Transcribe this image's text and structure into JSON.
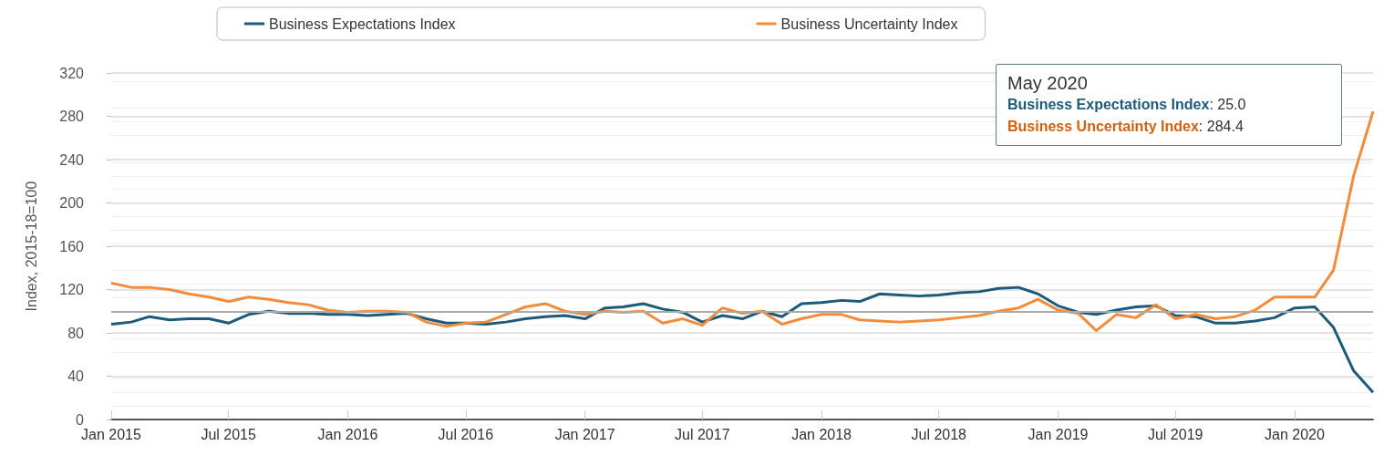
{
  "chart_data": {
    "type": "line",
    "ylabel": "Index, 2015-18=100",
    "x": [
      "2015-01",
      "2015-02",
      "2015-03",
      "2015-04",
      "2015-05",
      "2015-06",
      "2015-07",
      "2015-08",
      "2015-09",
      "2015-10",
      "2015-11",
      "2015-12",
      "2016-01",
      "2016-02",
      "2016-03",
      "2016-04",
      "2016-05",
      "2016-06",
      "2016-07",
      "2016-08",
      "2016-09",
      "2016-10",
      "2016-11",
      "2016-12",
      "2017-01",
      "2017-02",
      "2017-03",
      "2017-04",
      "2017-05",
      "2017-06",
      "2017-07",
      "2017-08",
      "2017-09",
      "2017-10",
      "2017-11",
      "2017-12",
      "2018-01",
      "2018-02",
      "2018-03",
      "2018-04",
      "2018-05",
      "2018-06",
      "2018-07",
      "2018-08",
      "2018-09",
      "2018-10",
      "2018-11",
      "2018-12",
      "2019-01",
      "2019-02",
      "2019-03",
      "2019-04",
      "2019-05",
      "2019-06",
      "2019-07",
      "2019-08",
      "2019-09",
      "2019-10",
      "2019-11",
      "2019-12",
      "2020-01",
      "2020-02",
      "2020-03",
      "2020-04",
      "2020-05"
    ],
    "series": [
      {
        "name": "Business Expectations Index",
        "color": "#1d5a7a",
        "values": [
          88,
          90,
          95,
          92,
          93,
          93,
          89,
          97,
          100,
          98,
          98,
          97,
          97,
          96,
          97,
          98,
          93,
          89,
          89,
          88,
          90,
          93,
          95,
          96,
          93,
          103,
          104,
          107,
          102,
          99,
          90,
          96,
          93,
          100,
          95,
          107,
          108,
          110,
          109,
          116,
          115,
          114,
          115,
          117,
          118,
          121,
          122,
          116,
          105,
          99,
          97,
          101,
          104,
          105,
          96,
          95,
          89,
          89,
          91,
          94,
          103,
          104,
          85,
          45,
          25.0
        ]
      },
      {
        "name": "Business Uncertainty Index",
        "color": "#f28c3c",
        "values": [
          126,
          122,
          122,
          120,
          116,
          113,
          109,
          113,
          111,
          108,
          106,
          101,
          99,
          100,
          100,
          99,
          90,
          86,
          89,
          90,
          97,
          104,
          107,
          100,
          97,
          100,
          99,
          100,
          89,
          93,
          87,
          103,
          98,
          100,
          88,
          93,
          97,
          97,
          92,
          91,
          90,
          91,
          92,
          94,
          96,
          100,
          103,
          111,
          101,
          98,
          82,
          97,
          94,
          106,
          93,
          97,
          93,
          95,
          101,
          113,
          113,
          113,
          138,
          225,
          284.4
        ]
      }
    ],
    "xlim": [
      "2015-01",
      "2020-05"
    ],
    "xticks": [
      {
        "value": "2015-01",
        "label": "Jan 2015"
      },
      {
        "value": "2015-07",
        "label": "Jul 2015"
      },
      {
        "value": "2016-01",
        "label": "Jan 2016"
      },
      {
        "value": "2016-07",
        "label": "Jul 2016"
      },
      {
        "value": "2017-01",
        "label": "Jan 2017"
      },
      {
        "value": "2017-07",
        "label": "Jul 2017"
      },
      {
        "value": "2018-01",
        "label": "Jan 2018"
      },
      {
        "value": "2018-07",
        "label": "Jul 2018"
      },
      {
        "value": "2019-01",
        "label": "Jan 2019"
      },
      {
        "value": "2019-07",
        "label": "Jul 2019"
      },
      {
        "value": "2020-01",
        "label": "Jan 2020"
      }
    ],
    "ylim": [
      0,
      320
    ],
    "yticks": [
      0,
      40,
      80,
      120,
      160,
      200,
      240,
      280,
      320
    ],
    "ref_lines": [
      {
        "axis": "y",
        "value": 100,
        "color": "#aaaaaa"
      }
    ],
    "annotations": [
      "May 2020",
      "Business Expectations Index: 25.0",
      "Business Uncertainty Index: 284.4"
    ],
    "grid": "y",
    "legend": "top",
    "line_style": "solid"
  }
}
